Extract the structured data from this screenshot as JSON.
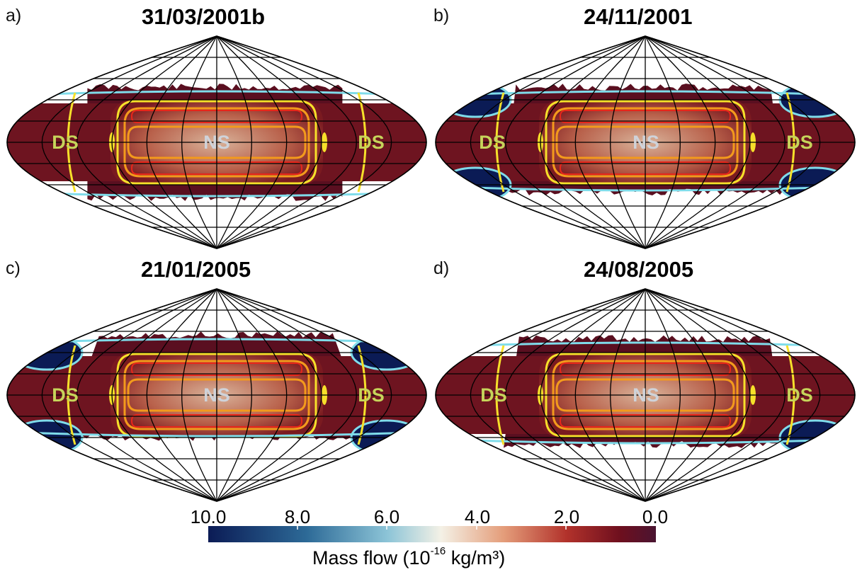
{
  "panels": [
    {
      "label": "a)",
      "title": "31/03/2001b",
      "left": "DS",
      "center": "NS",
      "right": "DS"
    },
    {
      "label": "b)",
      "title": "24/11/2001",
      "left": "DS",
      "center": "NS",
      "right": "DS"
    },
    {
      "label": "c)",
      "title": "21/01/2005",
      "left": "DS",
      "center": "NS",
      "right": "DS"
    },
    {
      "label": "d)",
      "title": "24/08/2005",
      "left": "DS",
      "center": "NS",
      "right": "DS"
    }
  ],
  "colorbar": {
    "ticks": [
      "10.0",
      "8.0",
      "6.0",
      "4.0",
      "2.0",
      "0.0"
    ],
    "range": [
      10.0,
      0.0
    ],
    "title_prefix": "Mass flow (10",
    "title_exponent": "-16",
    "title_suffix": " kg/m³)",
    "colors": [
      "#0b1b55",
      "#2d6a97",
      "#8cc4d7",
      "#f4f1e6",
      "#e49d7a",
      "#b2322b",
      "#6e0f1e",
      "#4a1431"
    ]
  },
  "contour_colors": {
    "red": "#e8261a",
    "orange": "#f39a1c",
    "yellow": "#f6e02a",
    "cyan": "#7fdcea"
  },
  "grid_color": "#000000"
}
